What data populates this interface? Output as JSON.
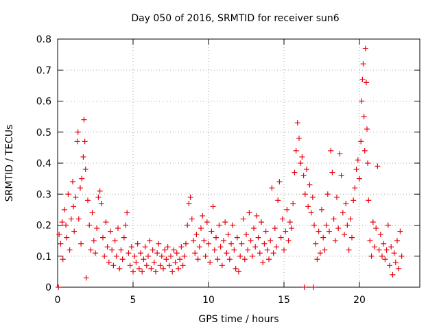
{
  "chart_data": {
    "type": "scatter",
    "title": "Day 050 of 2016, SRMTID for receiver sun6",
    "xlabel": "GPS time / hours",
    "ylabel": "SRMTID / TECUs",
    "xlim": [
      0,
      24
    ],
    "ylim": [
      0,
      0.8
    ],
    "xticks": [
      0,
      5,
      10,
      15,
      20
    ],
    "xtick_labels": [
      "0",
      "5",
      "10",
      "15",
      "20"
    ],
    "yticks": [
      0,
      0.1,
      0.2,
      0.3,
      0.4,
      0.5,
      0.6,
      0.7,
      0.8
    ],
    "ytick_labels": [
      "0",
      "0.1",
      "0.2",
      "0.3",
      "0.4",
      "0.5",
      "0.6",
      "0.7",
      "0.8"
    ],
    "grid": true,
    "marker": "+",
    "series": [
      {
        "name": "SRMTID",
        "color": "#e8000b",
        "points": [
          [
            0.05,
            0.0
          ],
          [
            0.1,
            0.17
          ],
          [
            0.2,
            0.14
          ],
          [
            0.3,
            0.21
          ],
          [
            0.35,
            0.09
          ],
          [
            0.45,
            0.25
          ],
          [
            0.55,
            0.2
          ],
          [
            0.6,
            0.16
          ],
          [
            0.7,
            0.3
          ],
          [
            0.8,
            0.12
          ],
          [
            0.9,
            0.22
          ],
          [
            1.0,
            0.34
          ],
          [
            1.05,
            0.26
          ],
          [
            1.1,
            0.18
          ],
          [
            1.2,
            0.29
          ],
          [
            1.3,
            0.47
          ],
          [
            1.35,
            0.5
          ],
          [
            1.4,
            0.22
          ],
          [
            1.5,
            0.32
          ],
          [
            1.55,
            0.14
          ],
          [
            1.6,
            0.35
          ],
          [
            1.7,
            0.42
          ],
          [
            1.75,
            0.54
          ],
          [
            1.8,
            0.47
          ],
          [
            1.85,
            0.38
          ],
          [
            1.9,
            0.03
          ],
          [
            2.0,
            0.28
          ],
          [
            2.1,
            0.2
          ],
          [
            2.2,
            0.12
          ],
          [
            2.3,
            0.24
          ],
          [
            2.4,
            0.15
          ],
          [
            2.5,
            0.11
          ],
          [
            2.6,
            0.19
          ],
          [
            2.7,
            0.29
          ],
          [
            2.8,
            0.31
          ],
          [
            2.9,
            0.27
          ],
          [
            3.0,
            0.16
          ],
          [
            3.1,
            0.1
          ],
          [
            3.2,
            0.21
          ],
          [
            3.3,
            0.13
          ],
          [
            3.4,
            0.08
          ],
          [
            3.5,
            0.18
          ],
          [
            3.6,
            0.12
          ],
          [
            3.7,
            0.07
          ],
          [
            3.8,
            0.15
          ],
          [
            3.9,
            0.1
          ],
          [
            4.0,
            0.19
          ],
          [
            4.1,
            0.06
          ],
          [
            4.2,
            0.12
          ],
          [
            4.3,
            0.09
          ],
          [
            4.4,
            0.16
          ],
          [
            4.5,
            0.2
          ],
          [
            4.6,
            0.24
          ],
          [
            4.7,
            0.11
          ],
          [
            4.8,
            0.07
          ],
          [
            4.9,
            0.13
          ],
          [
            5.0,
            0.05
          ],
          [
            5.1,
            0.1
          ],
          [
            5.2,
            0.08
          ],
          [
            5.3,
            0.14
          ],
          [
            5.4,
            0.06
          ],
          [
            5.5,
            0.11
          ],
          [
            5.6,
            0.05
          ],
          [
            5.7,
            0.09
          ],
          [
            5.8,
            0.13
          ],
          [
            5.9,
            0.07
          ],
          [
            6.0,
            0.1
          ],
          [
            6.1,
            0.15
          ],
          [
            6.2,
            0.06
          ],
          [
            6.3,
            0.12
          ],
          [
            6.4,
            0.08
          ],
          [
            6.5,
            0.05
          ],
          [
            6.6,
            0.11
          ],
          [
            6.7,
            0.14
          ],
          [
            6.8,
            0.07
          ],
          [
            6.9,
            0.1
          ],
          [
            7.0,
            0.06
          ],
          [
            7.1,
            0.12
          ],
          [
            7.2,
            0.09
          ],
          [
            7.3,
            0.13
          ],
          [
            7.4,
            0.07
          ],
          [
            7.5,
            0.1
          ],
          [
            7.6,
            0.05
          ],
          [
            7.7,
            0.12
          ],
          [
            7.8,
            0.08
          ],
          [
            7.9,
            0.11
          ],
          [
            8.0,
            0.06
          ],
          [
            8.1,
            0.09
          ],
          [
            8.2,
            0.13
          ],
          [
            8.3,
            0.07
          ],
          [
            8.4,
            0.1
          ],
          [
            8.5,
            0.14
          ],
          [
            8.6,
            0.2
          ],
          [
            8.7,
            0.27
          ],
          [
            8.8,
            0.29
          ],
          [
            8.9,
            0.22
          ],
          [
            9.0,
            0.15
          ],
          [
            9.1,
            0.11
          ],
          [
            9.2,
            0.17
          ],
          [
            9.3,
            0.09
          ],
          [
            9.4,
            0.13
          ],
          [
            9.5,
            0.19
          ],
          [
            9.6,
            0.23
          ],
          [
            9.7,
            0.15
          ],
          [
            9.8,
            0.1
          ],
          [
            9.9,
            0.21
          ],
          [
            10.0,
            0.14
          ],
          [
            10.1,
            0.08
          ],
          [
            10.2,
            0.18
          ],
          [
            10.3,
            0.26
          ],
          [
            10.4,
            0.12
          ],
          [
            10.5,
            0.16
          ],
          [
            10.6,
            0.09
          ],
          [
            10.7,
            0.2
          ],
          [
            10.8,
            0.13
          ],
          [
            10.9,
            0.07
          ],
          [
            11.0,
            0.15
          ],
          [
            11.1,
            0.21
          ],
          [
            11.2,
            0.11
          ],
          [
            11.3,
            0.17
          ],
          [
            11.4,
            0.09
          ],
          [
            11.5,
            0.14
          ],
          [
            11.6,
            0.2
          ],
          [
            11.7,
            0.12
          ],
          [
            11.8,
            0.06
          ],
          [
            11.9,
            0.16
          ],
          [
            12.0,
            0.05
          ],
          [
            12.1,
            0.1
          ],
          [
            12.2,
            0.14
          ],
          [
            12.3,
            0.22
          ],
          [
            12.4,
            0.09
          ],
          [
            12.5,
            0.17
          ],
          [
            12.6,
            0.12
          ],
          [
            12.7,
            0.24
          ],
          [
            12.8,
            0.15
          ],
          [
            12.9,
            0.1
          ],
          [
            13.0,
            0.19
          ],
          [
            13.1,
            0.13
          ],
          [
            13.2,
            0.23
          ],
          [
            13.3,
            0.16
          ],
          [
            13.4,
            0.11
          ],
          [
            13.5,
            0.21
          ],
          [
            13.6,
            0.08
          ],
          [
            13.7,
            0.14
          ],
          [
            13.8,
            0.18
          ],
          [
            13.9,
            0.12
          ],
          [
            14.0,
            0.09
          ],
          [
            14.1,
            0.15
          ],
          [
            14.2,
            0.32
          ],
          [
            14.3,
            0.11
          ],
          [
            14.4,
            0.19
          ],
          [
            14.5,
            0.13
          ],
          [
            14.6,
            0.28
          ],
          [
            14.7,
            0.34
          ],
          [
            14.8,
            0.16
          ],
          [
            14.9,
            0.22
          ],
          [
            15.0,
            0.12
          ],
          [
            15.1,
            0.18
          ],
          [
            15.2,
            0.25
          ],
          [
            15.3,
            0.15
          ],
          [
            15.4,
            0.21
          ],
          [
            15.5,
            0.19
          ],
          [
            15.6,
            0.27
          ],
          [
            15.7,
            0.37
          ],
          [
            15.8,
            0.44
          ],
          [
            15.9,
            0.53
          ],
          [
            16.0,
            0.48
          ],
          [
            16.1,
            0.4
          ],
          [
            16.2,
            0.42
          ],
          [
            16.3,
            0.36
          ],
          [
            16.35,
            0.0
          ],
          [
            16.4,
            0.3
          ],
          [
            16.5,
            0.38
          ],
          [
            16.6,
            0.26
          ],
          [
            16.7,
            0.33
          ],
          [
            16.8,
            0.24
          ],
          [
            16.9,
            0.29
          ],
          [
            16.95,
            0.0
          ],
          [
            17.0,
            0.2
          ],
          [
            17.1,
            0.14
          ],
          [
            17.2,
            0.09
          ],
          [
            17.3,
            0.18
          ],
          [
            17.4,
            0.11
          ],
          [
            17.5,
            0.25
          ],
          [
            17.6,
            0.16
          ],
          [
            17.7,
            0.12
          ],
          [
            17.8,
            0.2
          ],
          [
            17.9,
            0.3
          ],
          [
            18.0,
            0.18
          ],
          [
            18.1,
            0.44
          ],
          [
            18.2,
            0.37
          ],
          [
            18.3,
            0.22
          ],
          [
            18.4,
            0.15
          ],
          [
            18.5,
            0.29
          ],
          [
            18.6,
            0.19
          ],
          [
            18.7,
            0.43
          ],
          [
            18.8,
            0.36
          ],
          [
            18.9,
            0.24
          ],
          [
            19.0,
            0.17
          ],
          [
            19.1,
            0.27
          ],
          [
            19.2,
            0.2
          ],
          [
            19.3,
            0.12
          ],
          [
            19.4,
            0.22
          ],
          [
            19.5,
            0.16
          ],
          [
            19.6,
            0.28
          ],
          [
            19.7,
            0.32
          ],
          [
            19.8,
            0.38
          ],
          [
            19.9,
            0.41
          ],
          [
            20.0,
            0.35
          ],
          [
            20.1,
            0.47
          ],
          [
            20.15,
            0.6
          ],
          [
            20.2,
            0.67
          ],
          [
            20.25,
            0.72
          ],
          [
            20.3,
            0.55
          ],
          [
            20.35,
            0.44
          ],
          [
            20.4,
            0.77
          ],
          [
            20.45,
            0.66
          ],
          [
            20.5,
            0.51
          ],
          [
            20.55,
            0.4
          ],
          [
            20.6,
            0.28
          ],
          [
            20.7,
            0.15
          ],
          [
            20.8,
            0.1
          ],
          [
            20.9,
            0.21
          ],
          [
            21.0,
            0.13
          ],
          [
            21.1,
            0.19
          ],
          [
            21.2,
            0.39
          ],
          [
            21.3,
            0.12
          ],
          [
            21.4,
            0.17
          ],
          [
            21.5,
            0.1
          ],
          [
            21.6,
            0.14
          ],
          [
            21.7,
            0.09
          ],
          [
            21.8,
            0.12
          ],
          [
            21.9,
            0.2
          ],
          [
            22.0,
            0.07
          ],
          [
            22.1,
            0.13
          ],
          [
            22.2,
            0.04
          ],
          [
            22.3,
            0.11
          ],
          [
            22.4,
            0.08
          ],
          [
            22.5,
            0.15
          ],
          [
            22.6,
            0.06
          ],
          [
            22.7,
            0.18
          ],
          [
            22.8,
            0.1
          ]
        ]
      }
    ]
  }
}
